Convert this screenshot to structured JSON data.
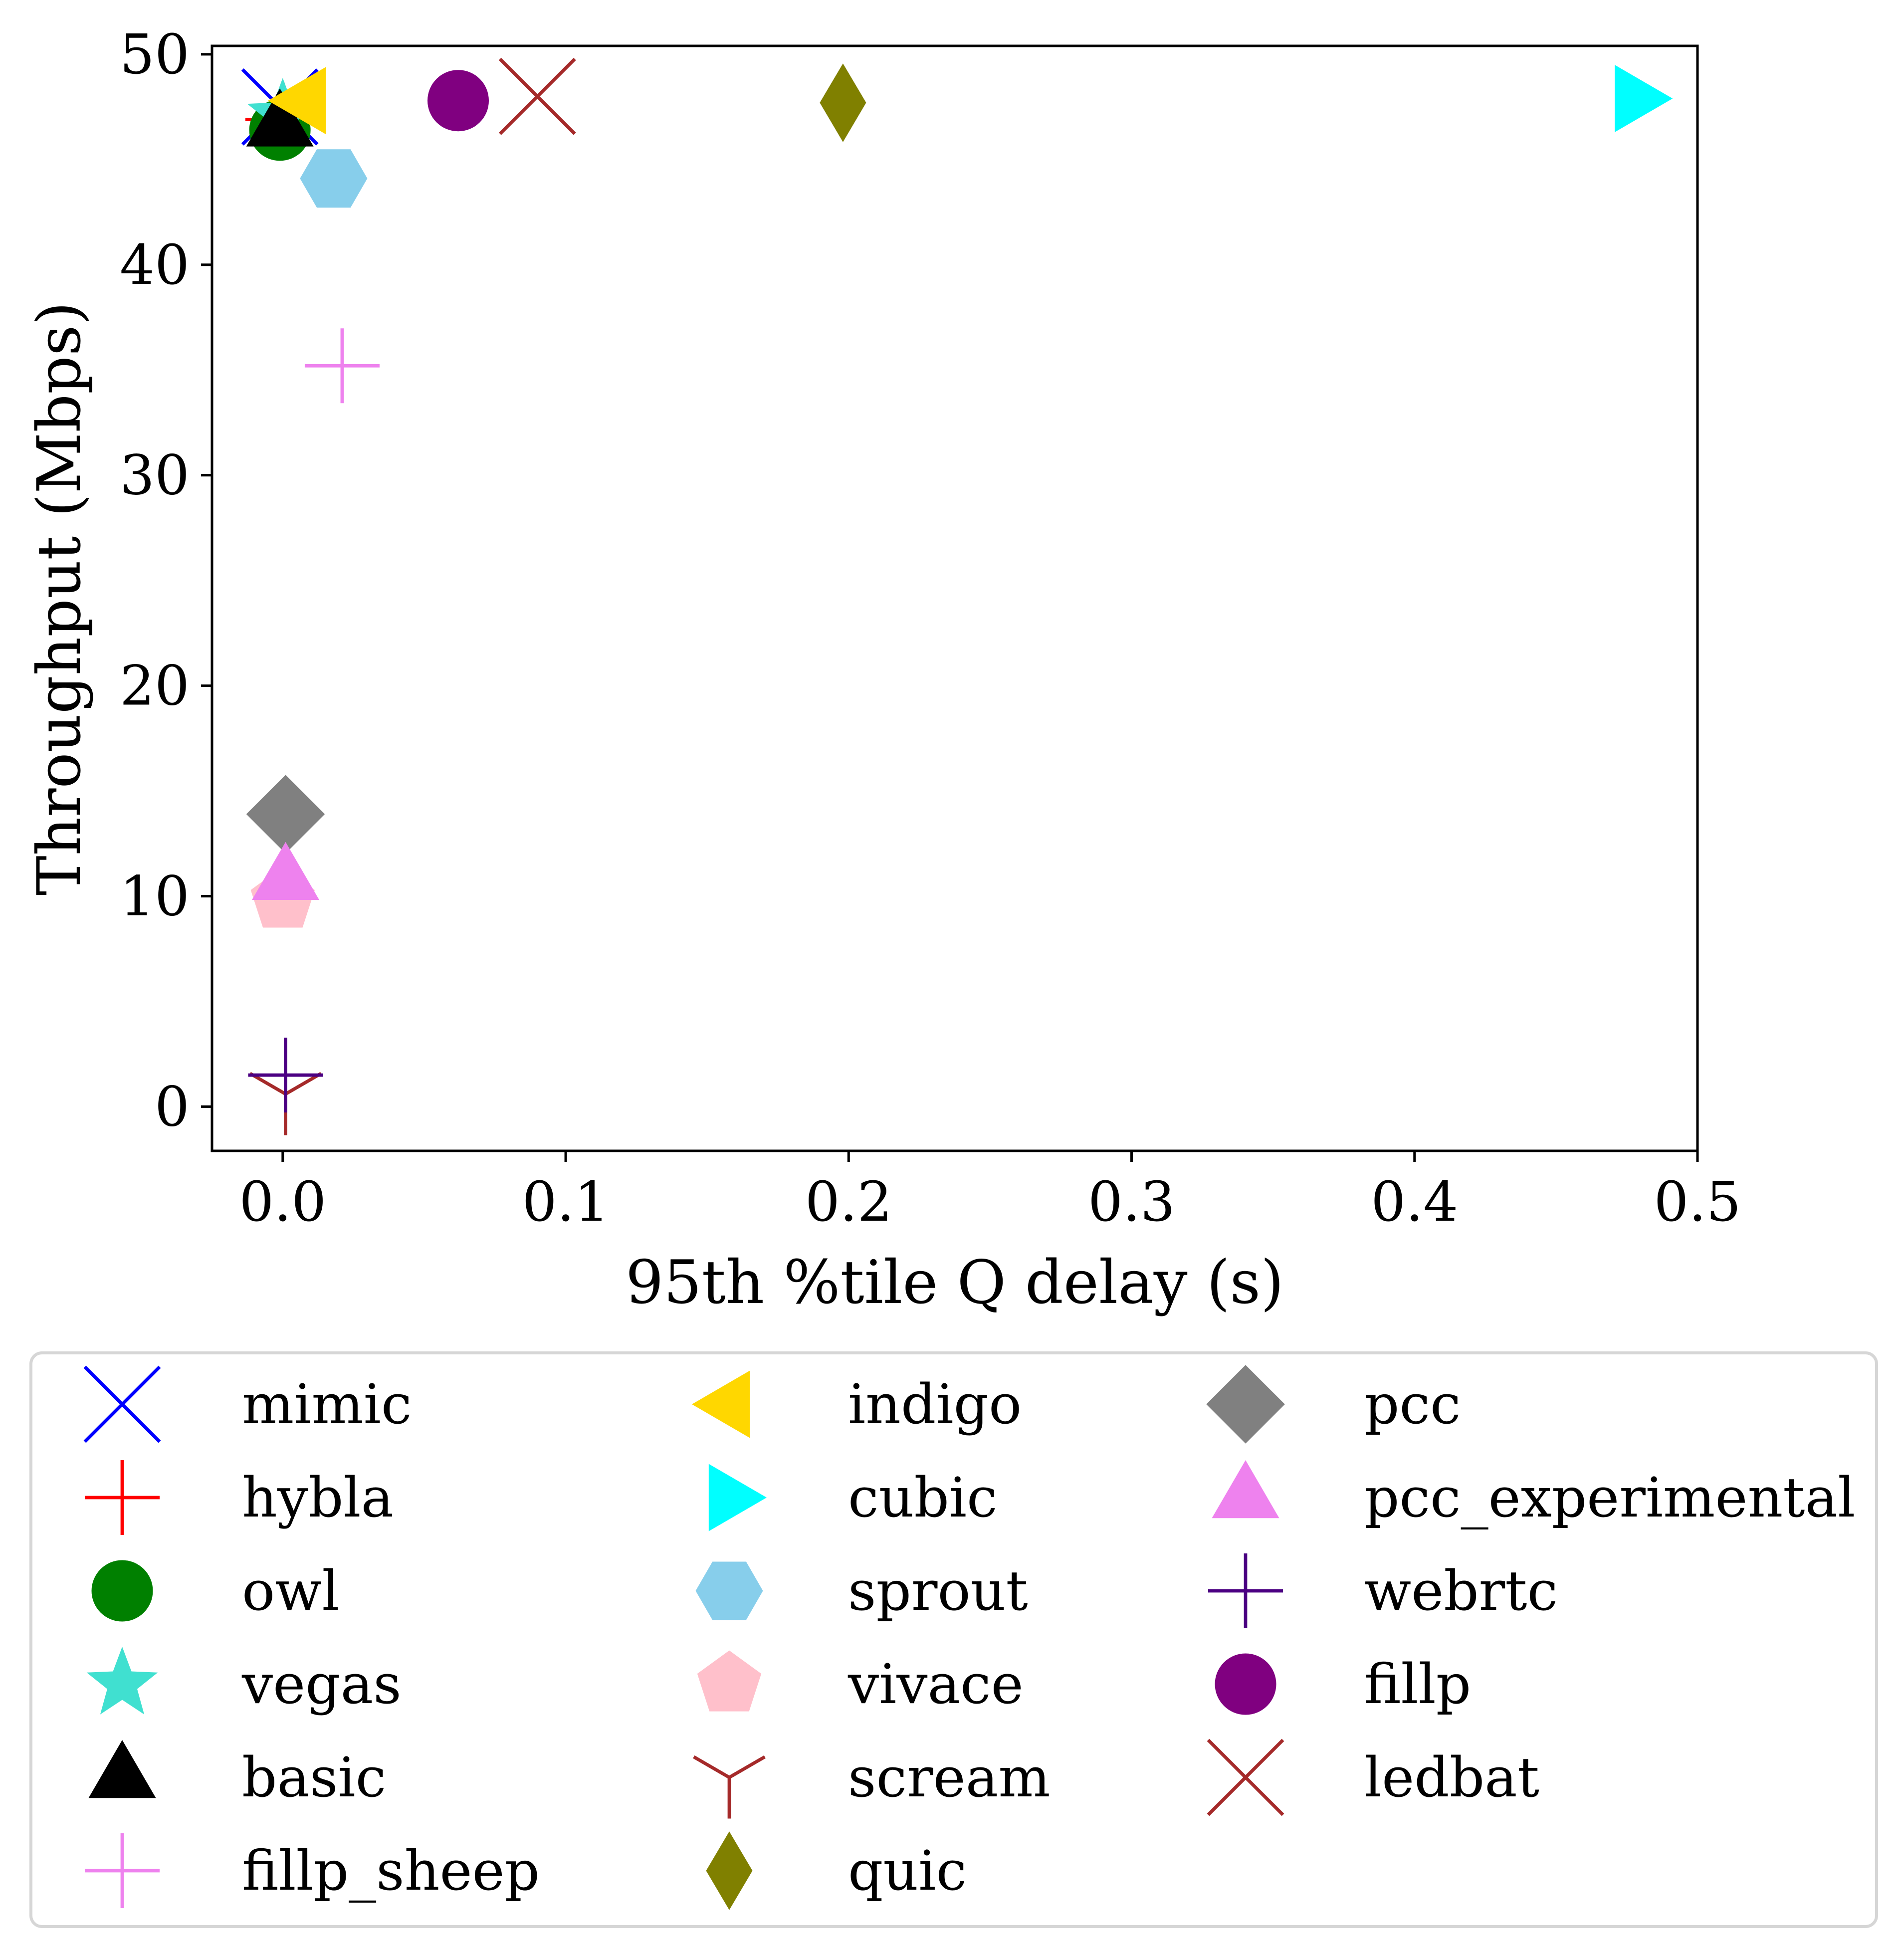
{
  "chart_data": {
    "type": "scatter",
    "title": "",
    "xlabel": "95th %tile Q delay (s)",
    "ylabel": "Throughput (Mbps)",
    "xlim": [
      -0.025,
      0.5
    ],
    "ylim": [
      -2.1,
      50.4
    ],
    "xticks": [
      0.0,
      0.1,
      0.2,
      0.3,
      0.4,
      0.5
    ],
    "xtick_labels": [
      "0.0",
      "0.1",
      "0.2",
      "0.3",
      "0.4",
      "0.5"
    ],
    "yticks": [
      0,
      10,
      20,
      30,
      40,
      50
    ],
    "ytick_labels": [
      "0",
      "10",
      "20",
      "30",
      "40",
      "50"
    ],
    "grid": false,
    "legend_position": "below",
    "legend_columns": 3,
    "series": [
      {
        "name": "mimic",
        "x": -0.001,
        "y": 47.5,
        "marker": "x",
        "color": "#0000ff"
      },
      {
        "name": "hybla",
        "x": 0.0,
        "y": 46.9,
        "marker": "plus",
        "color": "#ff0000"
      },
      {
        "name": "owl",
        "x": -0.001,
        "y": 46.4,
        "marker": "circle",
        "color": "#008000"
      },
      {
        "name": "vegas",
        "x": 0.0,
        "y": 47.1,
        "marker": "star",
        "color": "#40e0d0"
      },
      {
        "name": "basic",
        "x": -0.001,
        "y": 46.6,
        "marker": "triangle-up",
        "color": "#000000"
      },
      {
        "name": "fillp_sheep",
        "x": 0.021,
        "y": 35.2,
        "marker": "plus",
        "color": "#ee82ee"
      },
      {
        "name": "indigo",
        "x": 0.008,
        "y": 47.8,
        "marker": "triangle-left",
        "color": "#ffd700"
      },
      {
        "name": "cubic",
        "x": 0.478,
        "y": 47.9,
        "marker": "triangle-right",
        "color": "#00ffff"
      },
      {
        "name": "sprout",
        "x": 0.018,
        "y": 44.1,
        "marker": "hexagon",
        "color": "#87ceeb"
      },
      {
        "name": "vivace",
        "x": 0.0,
        "y": 9.8,
        "marker": "pentagon",
        "color": "#ffc0cb"
      },
      {
        "name": "scream",
        "x": 0.001,
        "y": 0.6,
        "marker": "tri-down",
        "color": "#a52a2a"
      },
      {
        "name": "quic",
        "x": 0.198,
        "y": 47.7,
        "marker": "thin-diamond",
        "color": "#808000"
      },
      {
        "name": "pcc",
        "x": 0.001,
        "y": 13.9,
        "marker": "diamond",
        "color": "#808080"
      },
      {
        "name": "pcc_experimental",
        "x": 0.001,
        "y": 10.8,
        "marker": "triangle-up",
        "color": "#ee82ee"
      },
      {
        "name": "webrtc",
        "x": 0.001,
        "y": 1.5,
        "marker": "plus",
        "color": "#4b0082"
      },
      {
        "name": "fillp",
        "x": 0.062,
        "y": 47.8,
        "marker": "circle",
        "color": "#800080"
      },
      {
        "name": "ledbat",
        "x": 0.09,
        "y": 48.0,
        "marker": "x",
        "color": "#a52a2a"
      }
    ]
  }
}
